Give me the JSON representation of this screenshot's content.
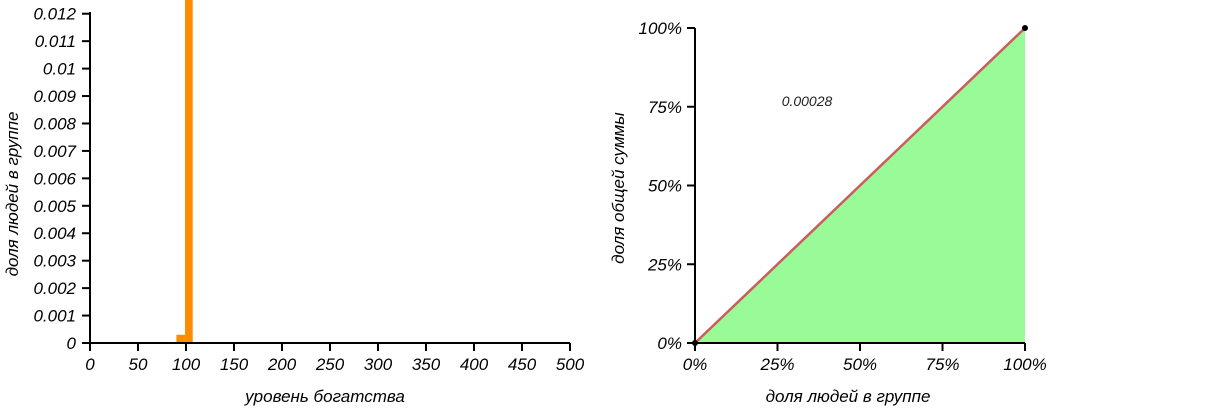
{
  "chart_data": [
    {
      "type": "bar",
      "title": "",
      "xlabel": "уровень богатства",
      "ylabel": "доля людей в группе",
      "xlim": [
        0,
        500
      ],
      "ylim": [
        0,
        0.0125
      ],
      "x_ticks": [
        0,
        50,
        100,
        150,
        200,
        250,
        300,
        350,
        400,
        450,
        500
      ],
      "x_tick_labels": [
        "0",
        "50",
        "100",
        "150",
        "200",
        "250",
        "300",
        "350",
        "400",
        "450",
        "500"
      ],
      "y_ticks": [
        0,
        0.001,
        0.002,
        0.003,
        0.004,
        0.005,
        0.006,
        0.007,
        0.008,
        0.009,
        0.01,
        0.011,
        0.012
      ],
      "y_tick_labels": [
        "0",
        "0.001",
        "0.002",
        "0.003",
        "0.004",
        "0.005",
        "0.006",
        "0.007",
        "0.008",
        "0.009",
        "0.01",
        "0.011",
        "0.012"
      ],
      "bar_color": "#ff8c00",
      "bars": [
        {
          "x0": 90,
          "x1": 99,
          "value": 0.0003
        },
        {
          "x0": 99,
          "x1": 107,
          "value": 0.0125
        }
      ],
      "grid": false
    },
    {
      "type": "area",
      "title": "",
      "xlabel": "доля людей в группе",
      "ylabel": "доля общей суммы",
      "xlim": [
        0,
        100
      ],
      "ylim": [
        0,
        100
      ],
      "x_tick_labels": [
        "0%",
        "25%",
        "50%",
        "75%",
        "100%"
      ],
      "y_tick_labels": [
        "0%",
        "25%",
        "50%",
        "75%",
        "100%"
      ],
      "ticks": [
        0,
        25,
        50,
        75,
        100
      ],
      "fill_color": "#98fb98",
      "line_color": "#cd5c5c",
      "x": [
        0,
        100
      ],
      "y": [
        0,
        100
      ],
      "annotation": "0.00028",
      "grid": false
    }
  ]
}
